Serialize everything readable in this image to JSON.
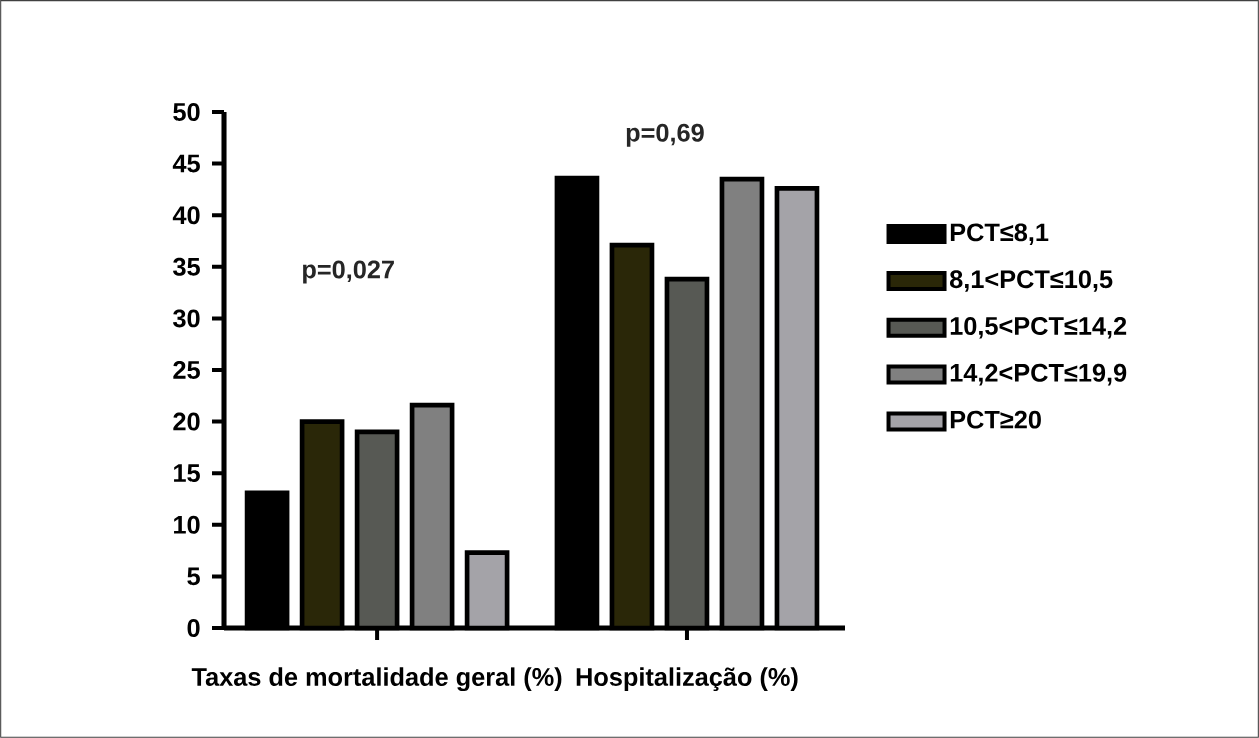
{
  "chart_data": {
    "type": "bar",
    "categories": [
      "Taxas de mortalidade geral (%)",
      "Hospitalização (%)"
    ],
    "series": [
      {
        "name": "PCT≤8,1",
        "color": "#000000",
        "values": [
          13.1,
          43.6
        ]
      },
      {
        "name": "8,1<PCT≤10,5",
        "color": "#2a2708",
        "values": [
          20.0,
          37.1
        ]
      },
      {
        "name": "10,5<PCT≤14,2",
        "color": "#575954",
        "values": [
          19.0,
          33.8
        ]
      },
      {
        "name": "14,2<PCT≤19,9",
        "color": "#808080",
        "values": [
          21.6,
          43.5
        ]
      },
      {
        "name": "PCT≥20",
        "color": "#a4a3a8",
        "values": [
          7.3,
          42.6
        ]
      }
    ],
    "ylim": [
      0,
      50
    ],
    "yticks": [
      0,
      5,
      10,
      15,
      20,
      25,
      30,
      35,
      40,
      45,
      50
    ],
    "legend": "right",
    "grid": false,
    "annotations": [
      "p=0,027",
      "p=0,69"
    ]
  }
}
